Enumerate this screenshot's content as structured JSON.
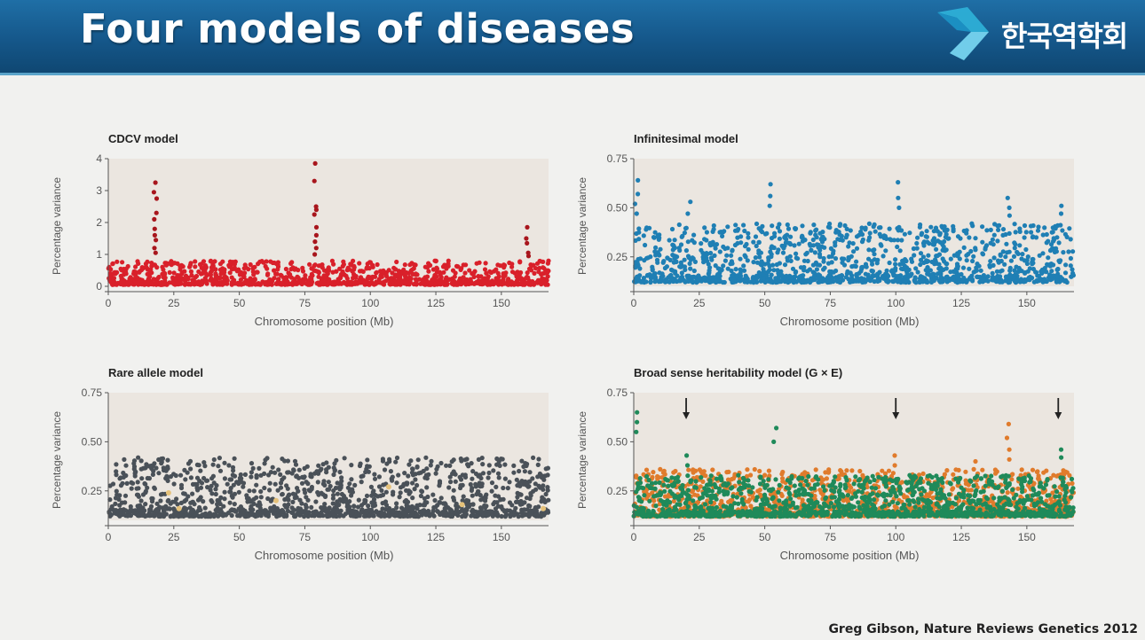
{
  "slide": {
    "title": "Four models of diseases",
    "logo_text": "한국역학회",
    "citation": "Greg Gibson, Nature Reviews Genetics 2012"
  },
  "chart_data": [
    {
      "type": "scatter",
      "title": "CDCV model",
      "xlabel": "Chromosome position (Mb)",
      "ylabel": "Percentage variance",
      "xlim": [
        0,
        168
      ],
      "ylim": [
        0,
        4
      ],
      "xticks": [
        "0",
        "25",
        "50",
        "75",
        "100",
        "125",
        "150"
      ],
      "xtick_values": [
        0,
        25,
        50,
        75,
        100,
        125,
        150
      ],
      "yticks": [
        "0",
        "1",
        "2",
        "3",
        "4"
      ],
      "ytick_values": [
        0,
        1,
        2,
        3,
        4
      ],
      "colors": {
        "primary": "#d9202a",
        "dark": "#a8161d",
        "background": "#ebe6e0"
      },
      "series": [
        {
          "color": "#d9202a",
          "background_range": [
            0.05,
            0.8
          ],
          "peaks": [
            {
              "x": 18,
              "values": [
                3.25,
                2.95,
                2.75,
                2.3,
                2.1,
                1.8,
                1.6,
                1.45,
                1.2,
                1.05
              ]
            },
            {
              "x": 79,
              "values": [
                3.85,
                3.3,
                2.5,
                2.4,
                2.25,
                1.85,
                1.6,
                1.4,
                1.2,
                1.0
              ]
            },
            {
              "x": 160,
              "values": [
                1.85,
                1.5,
                1.35,
                1.05,
                0.95
              ]
            }
          ]
        }
      ]
    },
    {
      "type": "scatter",
      "title": "Infinitesimal model",
      "xlabel": "Chromosome position (Mb)",
      "ylabel": "Percentage variance",
      "xlim": [
        0,
        168
      ],
      "ylim": [
        0.1,
        0.75
      ],
      "xticks": [
        "0",
        "25",
        "50",
        "75",
        "100",
        "125",
        "150"
      ],
      "xtick_values": [
        0,
        25,
        50,
        75,
        100,
        125,
        150
      ],
      "yticks": [
        "0.25",
        "0.50",
        "0.75"
      ],
      "ytick_values": [
        0.25,
        0.5,
        0.75
      ],
      "colors": {
        "primary": "#1f7fb4",
        "background": "#ebe6e0"
      },
      "series": [
        {
          "color": "#1f7fb4",
          "background_range": [
            0.12,
            0.42
          ],
          "peaks": [
            {
              "x": 1,
              "values": [
                0.64,
                0.57,
                0.52,
                0.47
              ]
            },
            {
              "x": 21,
              "values": [
                0.53,
                0.47
              ]
            },
            {
              "x": 52,
              "values": [
                0.62,
                0.56,
                0.51
              ]
            },
            {
              "x": 101,
              "values": [
                0.63,
                0.55,
                0.5
              ]
            },
            {
              "x": 143,
              "values": [
                0.55,
                0.5,
                0.46
              ]
            },
            {
              "x": 163,
              "values": [
                0.51,
                0.47
              ]
            }
          ]
        }
      ]
    },
    {
      "type": "scatter",
      "title": "Rare allele model",
      "xlabel": "Chromosome position (Mb)",
      "ylabel": "Percentage variance",
      "xlim": [
        0,
        168
      ],
      "ylim": [
        0.1,
        0.75
      ],
      "xticks": [
        "0",
        "25",
        "50",
        "75",
        "100",
        "125",
        "150"
      ],
      "xtick_values": [
        0,
        25,
        50,
        75,
        100,
        125,
        150
      ],
      "yticks": [
        "0.25",
        "0.50",
        "0.75"
      ],
      "ytick_values": [
        0.25,
        0.5,
        0.75
      ],
      "colors": {
        "primary": "#4a5158",
        "highlight": "#e6c27a",
        "background": "#ebe6e0"
      },
      "series": [
        {
          "color": "#4a5158",
          "background_range": [
            0.12,
            0.42
          ],
          "peaks": []
        },
        {
          "color": "#e6c27a",
          "points": [
            [
              23,
              0.24
            ],
            [
              27,
              0.16
            ],
            [
              64,
              0.2
            ],
            [
              107,
              0.27
            ],
            [
              135,
              0.18
            ],
            [
              166,
              0.16
            ]
          ]
        }
      ]
    },
    {
      "type": "scatter",
      "title": "Broad sense heritability model (G × E)",
      "xlabel": "Chromosome position (Mb)",
      "ylabel": "Percentage variance",
      "xlim": [
        0,
        168
      ],
      "ylim": [
        0.1,
        0.75
      ],
      "xticks": [
        "0",
        "25",
        "50",
        "75",
        "100",
        "125",
        "150"
      ],
      "xtick_values": [
        0,
        25,
        50,
        75,
        100,
        125,
        150
      ],
      "yticks": [
        "0.25",
        "0.50",
        "0.75"
      ],
      "ytick_values": [
        0.25,
        0.5,
        0.75
      ],
      "arrows_at_x": [
        20,
        100,
        162
      ],
      "colors": {
        "green": "#1f8a5a",
        "orange": "#e07b2c",
        "background": "#ebe6e0"
      },
      "series": [
        {
          "color": "#e07b2c",
          "background_range": [
            0.12,
            0.36
          ],
          "peaks": [
            {
              "x": 100,
              "values": [
                0.43,
                0.38
              ]
            },
            {
              "x": 130,
              "values": [
                0.4,
                0.36
              ]
            },
            {
              "x": 143,
              "values": [
                0.59,
                0.52,
                0.46,
                0.41
              ]
            }
          ]
        },
        {
          "color": "#1f8a5a",
          "background_range": [
            0.12,
            0.33
          ],
          "peaks": [
            {
              "x": 1,
              "values": [
                0.65,
                0.6,
                0.55
              ]
            },
            {
              "x": 20,
              "values": [
                0.43,
                0.38
              ]
            },
            {
              "x": 54,
              "values": [
                0.57,
                0.5
              ]
            },
            {
              "x": 163,
              "values": [
                0.46,
                0.42
              ]
            }
          ]
        }
      ]
    }
  ]
}
